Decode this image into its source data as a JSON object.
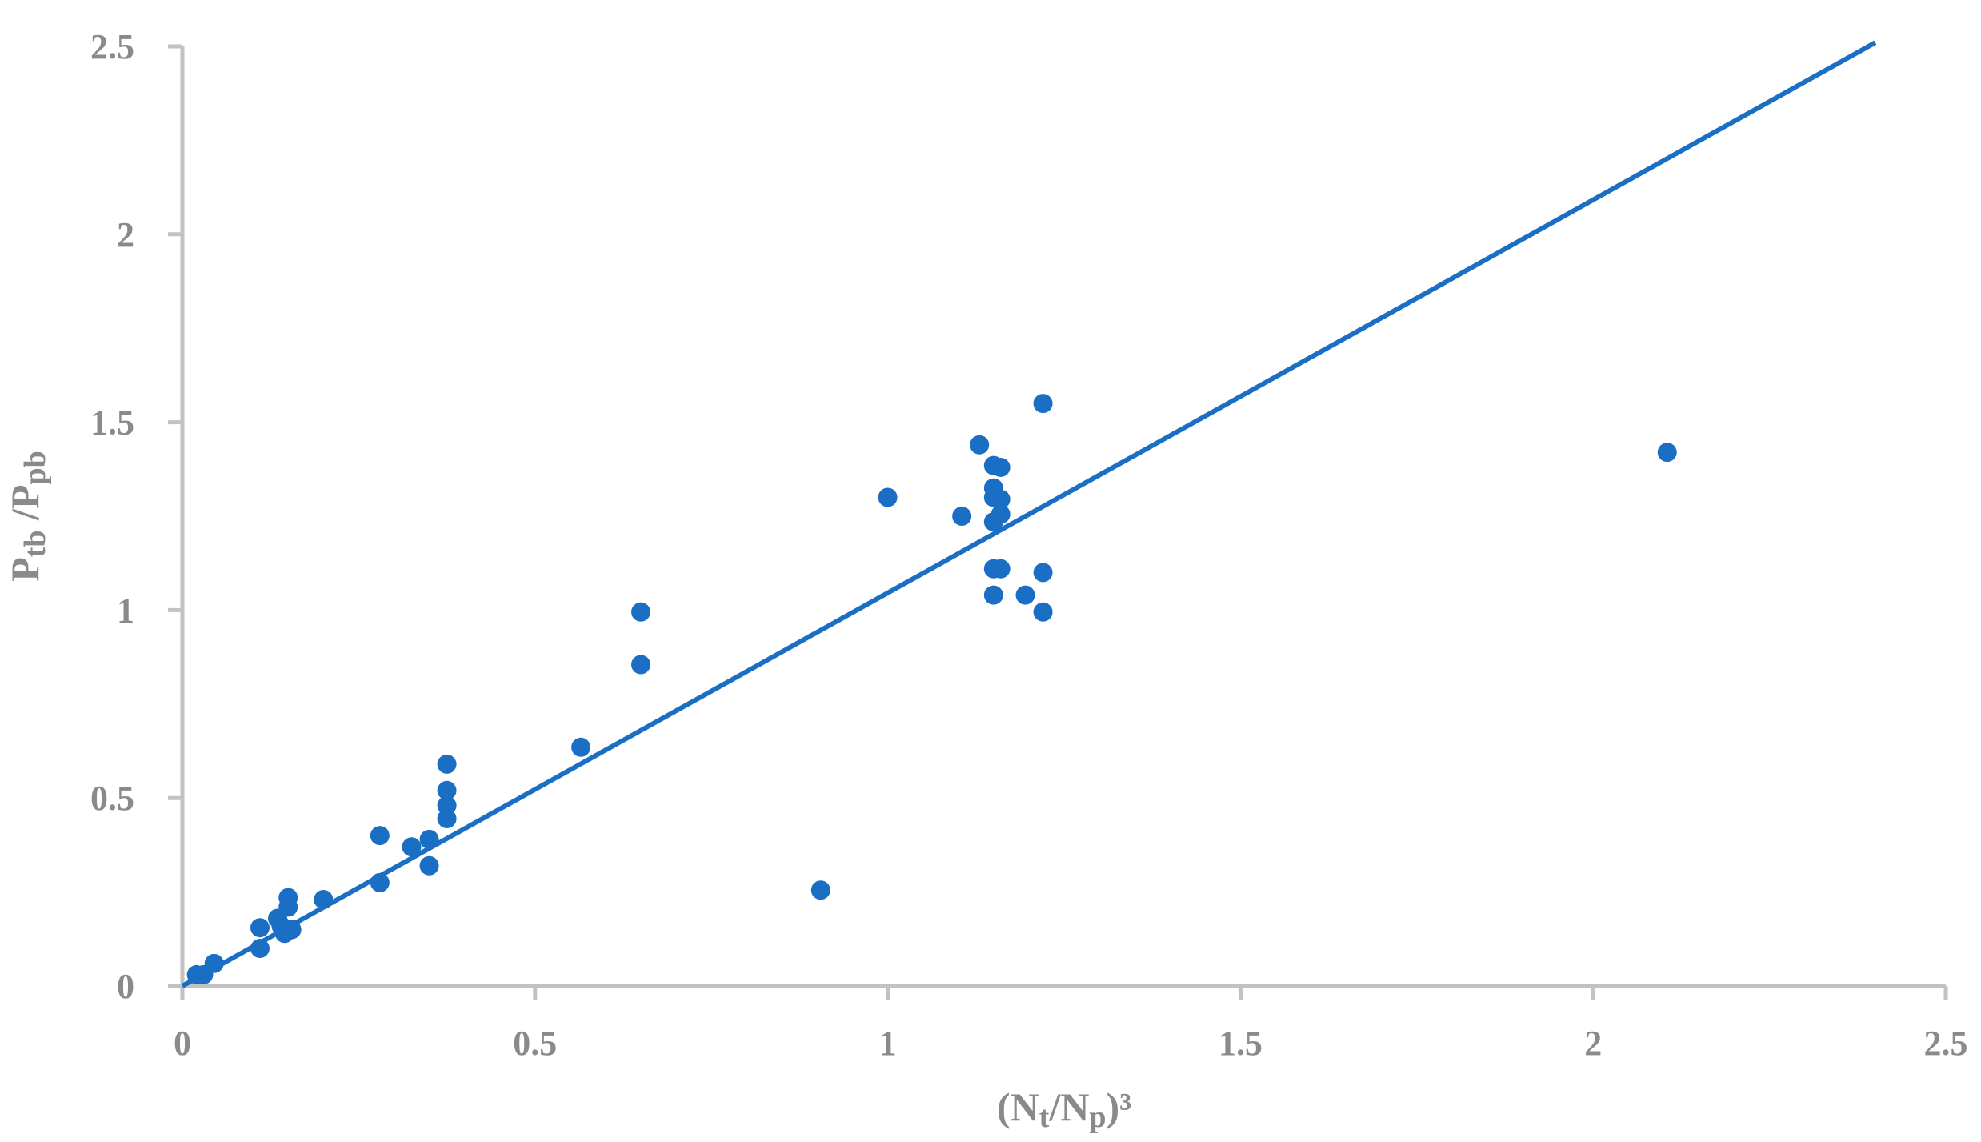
{
  "chart_data": {
    "type": "scatter",
    "title": "",
    "xlabel": {
      "base": "(N",
      "s1": "t",
      "mid": "/N",
      "s2": "p",
      "end": ")³"
    },
    "ylabel": {
      "p1": "P",
      "s1": "tb",
      "mid": " /P",
      "s2": "pb"
    },
    "xlim": [
      0,
      2.5
    ],
    "ylim": [
      0,
      2.5
    ],
    "xticks": [
      "0",
      "0.5",
      "1",
      "1.5",
      "2",
      "2.5"
    ],
    "yticks": [
      "0",
      "0.5",
      "1",
      "1.5",
      "2",
      "2.5"
    ],
    "grid": false,
    "legend": "none",
    "series": [
      {
        "color": "#1a6fc4",
        "points": [
          [
            0.02,
            0.03
          ],
          [
            0.03,
            0.03
          ],
          [
            0.045,
            0.06
          ],
          [
            0.11,
            0.155
          ],
          [
            0.11,
            0.1
          ],
          [
            0.135,
            0.18
          ],
          [
            0.14,
            0.16
          ],
          [
            0.145,
            0.14
          ],
          [
            0.15,
            0.235
          ],
          [
            0.15,
            0.21
          ],
          [
            0.155,
            0.15
          ],
          [
            0.2,
            0.23
          ],
          [
            0.28,
            0.4
          ],
          [
            0.28,
            0.275
          ],
          [
            0.325,
            0.37
          ],
          [
            0.35,
            0.39
          ],
          [
            0.35,
            0.32
          ],
          [
            0.375,
            0.59
          ],
          [
            0.375,
            0.52
          ],
          [
            0.375,
            0.48
          ],
          [
            0.375,
            0.445
          ],
          [
            0.565,
            0.635
          ],
          [
            0.65,
            0.995
          ],
          [
            0.65,
            0.855
          ],
          [
            0.905,
            0.255
          ],
          [
            1.0,
            1.3
          ],
          [
            1.105,
            1.25
          ],
          [
            1.13,
            1.44
          ],
          [
            1.15,
            1.385
          ],
          [
            1.15,
            1.325
          ],
          [
            1.15,
            1.3
          ],
          [
            1.15,
            1.235
          ],
          [
            1.15,
            1.11
          ],
          [
            1.15,
            1.04
          ],
          [
            1.16,
            1.38
          ],
          [
            1.16,
            1.295
          ],
          [
            1.16,
            1.255
          ],
          [
            1.16,
            1.11
          ],
          [
            1.195,
            1.04
          ],
          [
            1.22,
            1.55
          ],
          [
            1.22,
            1.1
          ],
          [
            1.22,
            0.995
          ],
          [
            2.105,
            1.42
          ]
        ]
      }
    ],
    "trendline": {
      "x": [
        0,
        2.4
      ],
      "y": [
        0,
        2.51
      ],
      "color": "#1a6fc4"
    }
  }
}
